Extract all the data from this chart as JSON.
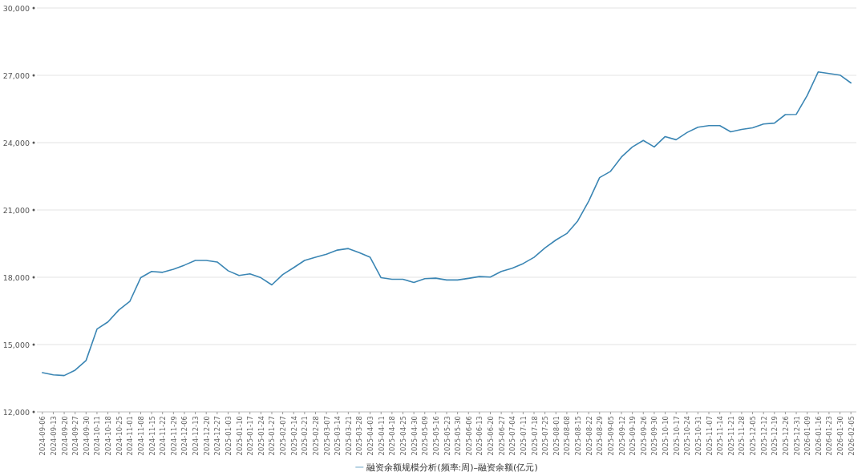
{
  "chart_data": {
    "type": "line",
    "categories": [
      "2024-09-06",
      "2024-09-13",
      "2024-09-20",
      "2024-09-27",
      "2024-09-30",
      "2024-10-11",
      "2024-10-18",
      "2024-10-25",
      "2024-11-01",
      "2024-11-08",
      "2024-11-15",
      "2024-11-22",
      "2024-11-29",
      "2024-12-06",
      "2024-12-13",
      "2024-12-20",
      "2024-12-27",
      "2025-01-03",
      "2025-01-10",
      "2025-01-17",
      "2025-01-24",
      "2025-01-27",
      "2025-02-07",
      "2025-02-14",
      "2025-02-21",
      "2025-02-28",
      "2025-03-07",
      "2025-03-14",
      "2025-03-21",
      "2025-03-28",
      "2025-04-03",
      "2025-04-11",
      "2025-04-18",
      "2025-04-25",
      "2025-04-30",
      "2025-05-09",
      "2025-05-16",
      "2025-05-23",
      "2025-05-30",
      "2025-06-06",
      "2025-06-13",
      "2025-06-20",
      "2025-06-27",
      "2025-07-04",
      "2025-07-11",
      "2025-07-18",
      "2025-07-25",
      "2025-08-01",
      "2025-08-08",
      "2025-08-15",
      "2025-08-22",
      "2025-08-29",
      "2025-09-05",
      "2025-09-12",
      "2025-09-19",
      "2025-09-26",
      "2025-09-30",
      "2025-10-10",
      "2025-10-17",
      "2025-10-24",
      "2025-10-31",
      "2025-11-07",
      "2025-11-14",
      "2025-11-21",
      "2025-11-28",
      "2025-12-05",
      "2025-12-12",
      "2025-12-19",
      "2025-12-26",
      "2025-12-31",
      "2026-01-09",
      "2026-01-16",
      "2026-01-23",
      "2026-01-30",
      "2026-02-05"
    ],
    "series": [
      {
        "name": "融资余额规模分析(频率:周)–融资余额(亿元)",
        "color": "#3b86b4",
        "values": [
          13750,
          13650,
          13620,
          13860,
          14290,
          15690,
          16010,
          16540,
          16920,
          17980,
          18260,
          18220,
          18360,
          18540,
          18750,
          18750,
          18680,
          18290,
          18080,
          18150,
          17980,
          17660,
          18120,
          18430,
          18750,
          18890,
          19030,
          19210,
          19280,
          19100,
          18890,
          17980,
          17910,
          17910,
          17770,
          17940,
          17960,
          17880,
          17880,
          17950,
          18030,
          18010,
          18260,
          18400,
          18610,
          18890,
          19310,
          19660,
          19950,
          20510,
          21390,
          22440,
          22720,
          23360,
          23810,
          24100,
          23810,
          24270,
          24130,
          24450,
          24690,
          24760,
          24760,
          24480,
          24590,
          24660,
          24830,
          24870,
          25250,
          25260,
          26100,
          27150,
          27080,
          27010,
          26660
        ]
      }
    ],
    "ylim": [
      12000,
      30000
    ],
    "yticks": [
      {
        "value": 12000,
        "label": "12,000"
      },
      {
        "value": 15000,
        "label": "15,000"
      },
      {
        "value": 18000,
        "label": "18,000"
      },
      {
        "value": 21000,
        "label": "21,000"
      },
      {
        "value": 24000,
        "label": "24,000"
      },
      {
        "value": 27000,
        "label": "27,000"
      },
      {
        "value": 30000,
        "label": "30,000"
      }
    ],
    "grid": "y",
    "legend": "bottom",
    "marker": "none",
    "line_style": "solid"
  }
}
